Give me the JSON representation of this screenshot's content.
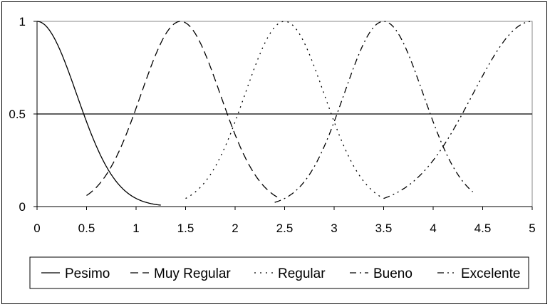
{
  "chart_data": {
    "type": "line",
    "xlim": [
      0,
      5
    ],
    "ylim": [
      0,
      1
    ],
    "x_ticks": [
      "0",
      "0.5",
      "1",
      "1.5",
      "2",
      "2.5",
      "3",
      "3.5",
      "4",
      "4.5",
      "5"
    ],
    "y_ticks": [
      "0",
      "0.5",
      "1"
    ],
    "reference_line": 0.5,
    "grid": false,
    "legend_position": "bottom",
    "series": [
      {
        "name": "Pesimo",
        "shape": "half-gaussian-decreasing",
        "center": 0,
        "sigma": 0.4,
        "x_range": [
          0,
          1.25
        ],
        "dash": "none",
        "color": "#000000"
      },
      {
        "name": "Muy Regular",
        "shape": "gaussian",
        "center": 1.45,
        "sigma": 0.4,
        "x_range": [
          0.5,
          2.45
        ],
        "dash": "11,6",
        "color": "#000000"
      },
      {
        "name": "Regular",
        "shape": "gaussian",
        "center": 2.5,
        "sigma": 0.4,
        "x_range": [
          1.5,
          3.5
        ],
        "dash": "2,6",
        "color": "#000000"
      },
      {
        "name": "Bueno",
        "shape": "gaussian",
        "center": 3.5,
        "sigma": 0.4,
        "x_range": [
          2.4,
          4.4
        ],
        "dash": "9,5,2,5",
        "color": "#000000"
      },
      {
        "name": "Excelente",
        "shape": "half-gaussian-increasing",
        "center": 5,
        "sigma": 0.6,
        "x_range": [
          3.5,
          5
        ],
        "dash": "9,5,2,5,2,5",
        "color": "#000000"
      }
    ]
  }
}
